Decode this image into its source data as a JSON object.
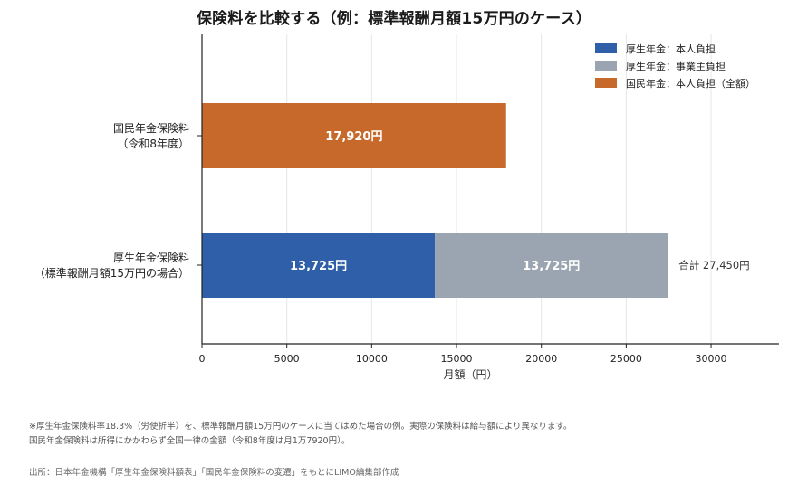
{
  "title": "保険料を比較する（例：標準報酬月額15万円のケース）",
  "chart_data": {
    "type": "bar",
    "orientation": "horizontal",
    "stacked": true,
    "categories": [
      [
        "国民年金保険料",
        "（令和8年度）"
      ],
      [
        "厚生年金保険料",
        "（標準報酬月額15万円の場合）"
      ]
    ],
    "series": [
      {
        "name": "厚生年金：本人負担",
        "color": "#2e5fa8",
        "values": [
          0,
          13725
        ],
        "labels": [
          "",
          "13,725円"
        ]
      },
      {
        "name": "厚生年金：事業主負担",
        "color": "#9aa5b1",
        "values": [
          0,
          13725
        ],
        "labels": [
          "",
          "13,725円"
        ]
      },
      {
        "name": "国民年金：本人負担（全額）",
        "color": "#c8692c",
        "values": [
          17920,
          0
        ],
        "labels": [
          "17,920円",
          ""
        ]
      }
    ],
    "total_label": "合計 27,450円",
    "xlabel": "月額（円）",
    "xlim": [
      0,
      34000
    ],
    "xticks": [
      0,
      5000,
      10000,
      15000,
      20000,
      25000,
      30000
    ],
    "grid": "vertical",
    "legend": "top-right"
  },
  "notes": [
    "※厚生年金保険料率18.3%（労使折半）を、標準報酬月額15万円のケースに当てはめた場合の例。実際の保険料は給与額により異なります。",
    "国民年金保険料は所得にかかわらず全国一律の金額（令和8年度は月1万7920円）。"
  ],
  "source": "出所：日本年金機構「厚生年金保険料額表」「国民年金保険料の変遷」をもとにLIMO編集部作成"
}
